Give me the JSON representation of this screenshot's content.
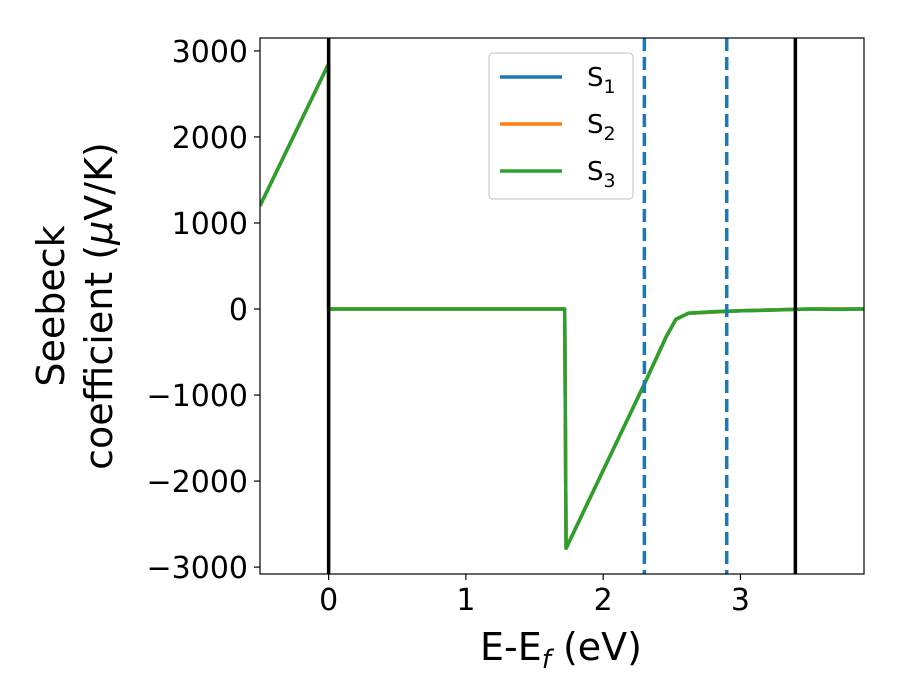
{
  "chart_data": {
    "type": "line",
    "xlabel": {
      "base": "E-E",
      "sub": "f",
      "unit": " (eV)"
    },
    "ylabel": {
      "line1": "Seebeck",
      "line2": "coefficient  (",
      "mu": "μ",
      "line2_end": "V/K)"
    },
    "xlim": [
      -0.5,
      3.9
    ],
    "ylim": [
      -3080,
      3150
    ],
    "xticks": [
      {
        "value": 0,
        "label": "0"
      },
      {
        "value": 1,
        "label": "1"
      },
      {
        "value": 2,
        "label": "2"
      },
      {
        "value": 3,
        "label": "3"
      }
    ],
    "yticks": [
      {
        "value": 3000,
        "label": "3000"
      },
      {
        "value": 2000,
        "label": "2000"
      },
      {
        "value": 1000,
        "label": "1000"
      },
      {
        "value": 0,
        "label": "0"
      },
      {
        "value": -1000,
        "label": "−1000"
      },
      {
        "value": -2000,
        "label": "−2000"
      },
      {
        "value": -3000,
        "label": "−3000"
      }
    ],
    "grid": false,
    "legend_position": "top-right",
    "series": [
      {
        "name": "S",
        "sub": "1",
        "color": "#1f77b4",
        "points": [
          [
            -0.5,
            1200
          ],
          [
            0.0,
            2850
          ],
          [
            0.0,
            0
          ],
          [
            1.72,
            0
          ],
          [
            1.72,
            0
          ],
          [
            1.73,
            -2780
          ],
          [
            2.3,
            -870
          ],
          [
            2.46,
            -320
          ],
          [
            2.53,
            -120
          ],
          [
            2.62,
            -50
          ],
          [
            3.0,
            -20
          ],
          [
            3.5,
            0
          ],
          [
            3.9,
            0
          ]
        ]
      },
      {
        "name": "S",
        "sub": "2",
        "color": "#ff7f0e",
        "points": [
          [
            -0.5,
            1200
          ],
          [
            0.0,
            2850
          ],
          [
            0.0,
            0
          ],
          [
            1.72,
            0
          ],
          [
            1.72,
            0
          ],
          [
            1.73,
            -2780
          ],
          [
            2.3,
            -870
          ],
          [
            2.46,
            -320
          ],
          [
            2.53,
            -120
          ],
          [
            2.62,
            -50
          ],
          [
            3.0,
            -20
          ],
          [
            3.5,
            0
          ],
          [
            3.9,
            0
          ]
        ]
      },
      {
        "name": "S",
        "sub": "3",
        "color": "#2ca02c",
        "points": [
          [
            -0.5,
            1200
          ],
          [
            0.0,
            2850
          ],
          [
            0.0,
            0
          ],
          [
            1.72,
            0
          ],
          [
            1.72,
            0
          ],
          [
            1.73,
            -2780
          ],
          [
            2.3,
            -870
          ],
          [
            2.46,
            -320
          ],
          [
            2.53,
            -120
          ],
          [
            2.62,
            -50
          ],
          [
            2.8,
            -30
          ],
          [
            3.0,
            -20
          ],
          [
            3.2,
            -15
          ],
          [
            3.5,
            0
          ],
          [
            3.7,
            -5
          ],
          [
            3.9,
            0
          ]
        ]
      }
    ],
    "vlines": [
      {
        "x": 0.0,
        "style": "solid",
        "color": "#000000"
      },
      {
        "x": 3.4,
        "style": "solid",
        "color": "#000000"
      },
      {
        "x": 2.3,
        "style": "dashed",
        "color": "#1f77b4"
      },
      {
        "x": 2.9,
        "style": "dashed",
        "color": "#1f77b4"
      }
    ]
  }
}
